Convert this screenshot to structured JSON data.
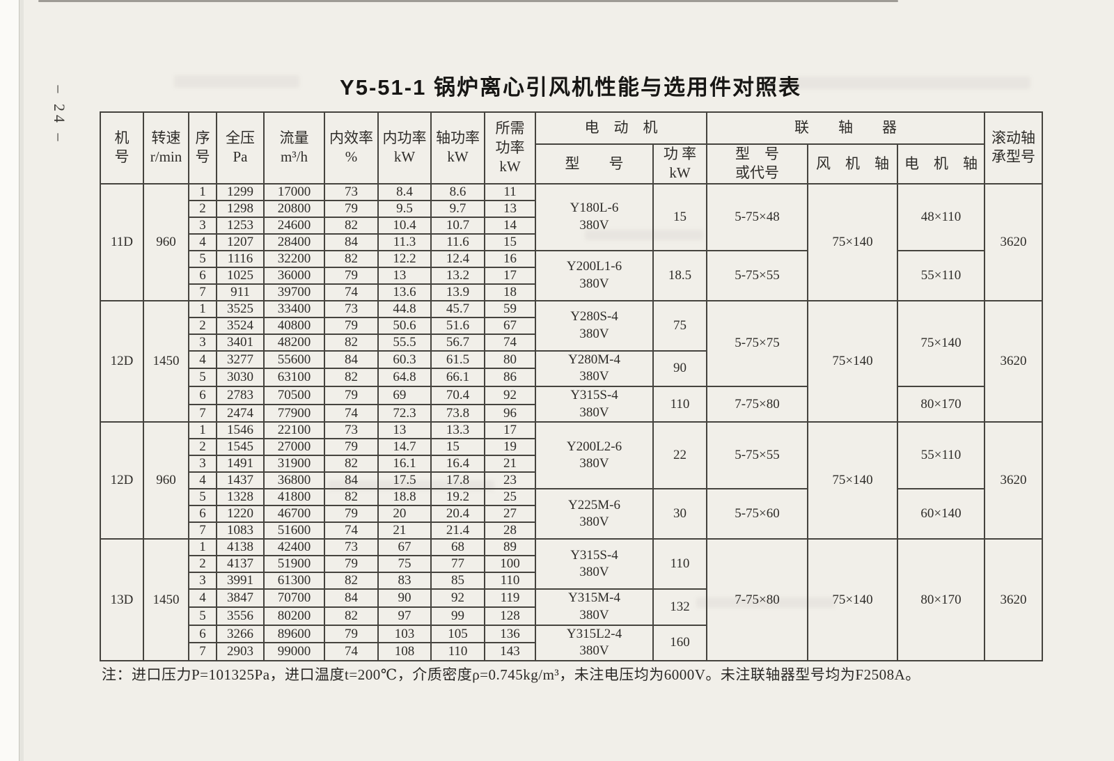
{
  "page": {
    "number_label": "– 24 –"
  },
  "title": "Y5-51-1  锅炉离心引风机性能与选用件对照表",
  "table": {
    "header": {
      "machine_no": "机\n号",
      "speed": "转速\nr/min",
      "seq": "序\n号",
      "pressure": "全压\nPa",
      "flow": "流量\nm³/h",
      "efficiency": "内效率\n%",
      "internal_power": "内功率\nkW",
      "shaft_power": "轴功率\nkW",
      "required_power": "所需\n功率\nkW",
      "motor_group": "电　动　机",
      "motor_model": "型　　号",
      "motor_power": "功 率\nkW",
      "coupling_group": "联　　轴　　器",
      "coupling_model": "型　号\n或代号",
      "fan_shaft": "风　机　轴",
      "motor_shaft": "电　机　轴",
      "bearing": "滚动轴\n承型号"
    },
    "blocks": [
      {
        "machine_no": "11D",
        "speed": "960",
        "rows": [
          [
            "1",
            "1299",
            "17000",
            "73",
            "8.4",
            "8.6",
            "11"
          ],
          [
            "2",
            "1298",
            "20800",
            "79",
            "9.5",
            "9.7",
            "13"
          ],
          [
            "3",
            "1253",
            "24600",
            "82",
            "10.4",
            "10.7",
            "14"
          ],
          [
            "4",
            "1207",
            "28400",
            "84",
            "11.3",
            "11.6",
            "15"
          ],
          [
            "5",
            "1116",
            "32200",
            "82",
            "12.2",
            "12.4",
            "16"
          ],
          [
            "6",
            "1025",
            "36000",
            "79",
            "13",
            "13.2",
            "17"
          ],
          [
            "7",
            "911",
            "39700",
            "74",
            "13.6",
            "13.9",
            "18"
          ]
        ],
        "motors": [
          {
            "model": "Y180L-6\n380V",
            "power": "15",
            "span": 4
          },
          {
            "model": "Y200L1-6\n380V",
            "power": "18.5",
            "span": 3
          }
        ],
        "couplings": [
          {
            "label": "5-75×48",
            "span": 4
          },
          {
            "label": "5-75×55",
            "span": 3
          }
        ],
        "fan_shafts": [
          {
            "label": "75×140",
            "span": 7
          }
        ],
        "motor_shafts": [
          {
            "label": "48×110",
            "span": 4
          },
          {
            "label": "55×110",
            "span": 3
          }
        ],
        "bearings": [
          {
            "label": "3620",
            "span": 7
          }
        ]
      },
      {
        "machine_no": "12D",
        "speed": "1450",
        "rows": [
          [
            "1",
            "3525",
            "33400",
            "73",
            "44.8",
            "45.7",
            "59"
          ],
          [
            "2",
            "3524",
            "40800",
            "79",
            "50.6",
            "51.6",
            "67"
          ],
          [
            "3",
            "3401",
            "48200",
            "82",
            "55.5",
            "56.7",
            "74"
          ],
          [
            "4",
            "3277",
            "55600",
            "84",
            "60.3",
            "61.5",
            "80"
          ],
          [
            "5",
            "3030",
            "63100",
            "82",
            "64.8",
            "66.1",
            "86"
          ],
          [
            "6",
            "2783",
            "70500",
            "79",
            "69",
            "70.4",
            "92"
          ],
          [
            "7",
            "2474",
            "77900",
            "74",
            "72.3",
            "73.8",
            "96"
          ]
        ],
        "motors": [
          {
            "model": "Y280S-4\n380V",
            "power": "75",
            "span": 3
          },
          {
            "model": "Y280M-4\n380V",
            "power": "90",
            "span": 2
          },
          {
            "model": "Y315S-4\n380V",
            "power": "110",
            "span": 2
          }
        ],
        "couplings": [
          {
            "label": "5-75×75",
            "span": 5
          },
          {
            "label": "7-75×80",
            "span": 2
          }
        ],
        "fan_shafts": [
          {
            "label": "75×140",
            "span": 7
          }
        ],
        "motor_shafts": [
          {
            "label": "75×140",
            "span": 5
          },
          {
            "label": "80×170",
            "span": 2
          }
        ],
        "bearings": [
          {
            "label": "3620",
            "span": 7
          }
        ]
      },
      {
        "machine_no": "12D",
        "speed": "960",
        "rows": [
          [
            "1",
            "1546",
            "22100",
            "73",
            "13",
            "13.3",
            "17"
          ],
          [
            "2",
            "1545",
            "27000",
            "79",
            "14.7",
            "15",
            "19"
          ],
          [
            "3",
            "1491",
            "31900",
            "82",
            "16.1",
            "16.4",
            "21"
          ],
          [
            "4",
            "1437",
            "36800",
            "84",
            "17.5",
            "17.8",
            "23"
          ],
          [
            "5",
            "1328",
            "41800",
            "82",
            "18.8",
            "19.2",
            "25"
          ],
          [
            "6",
            "1220",
            "46700",
            "79",
            "20",
            "20.4",
            "27"
          ],
          [
            "7",
            "1083",
            "51600",
            "74",
            "21",
            "21.4",
            "28"
          ]
        ],
        "motors": [
          {
            "model": "Y200L2-6\n380V",
            "power": "22",
            "span": 4
          },
          {
            "model": "Y225M-6\n380V",
            "power": "30",
            "span": 3
          }
        ],
        "couplings": [
          {
            "label": "5-75×55",
            "span": 4
          },
          {
            "label": "5-75×60",
            "span": 3
          }
        ],
        "fan_shafts": [
          {
            "label": "75×140",
            "span": 7
          }
        ],
        "motor_shafts": [
          {
            "label": "55×110",
            "span": 4
          },
          {
            "label": "60×140",
            "span": 3
          }
        ],
        "bearings": [
          {
            "label": "3620",
            "span": 7
          }
        ]
      },
      {
        "machine_no": "13D",
        "speed": "1450",
        "rows": [
          [
            "1",
            "4138",
            "42400",
            "73",
            "67",
            "68",
            "89"
          ],
          [
            "2",
            "4137",
            "51900",
            "79",
            "75",
            "77",
            "100"
          ],
          [
            "3",
            "3991",
            "61300",
            "82",
            "83",
            "85",
            "110"
          ],
          [
            "4",
            "3847",
            "70700",
            "84",
            "90",
            "92",
            "119"
          ],
          [
            "5",
            "3556",
            "80200",
            "82",
            "97",
            "99",
            "128"
          ],
          [
            "6",
            "3266",
            "89600",
            "79",
            "103",
            "105",
            "136"
          ],
          [
            "7",
            "2903",
            "99000",
            "74",
            "108",
            "110",
            "143"
          ]
        ],
        "motors": [
          {
            "model": "Y315S-4\n380V",
            "power": "110",
            "span": 3
          },
          {
            "model": "Y315M-4\n380V",
            "power": "132",
            "span": 2
          },
          {
            "model": "Y315L2-4\n380V",
            "power": "160",
            "span": 2
          }
        ],
        "couplings": [
          {
            "label": "7-75×80",
            "span": 7
          }
        ],
        "fan_shafts": [
          {
            "label": "75×140",
            "span": 7
          }
        ],
        "motor_shafts": [
          {
            "label": "80×170",
            "span": 7
          }
        ],
        "bearings": [
          {
            "label": "3620",
            "span": 7
          }
        ]
      }
    ]
  },
  "footnote": "注：进口压力P=101325Pa，进口温度t=200℃，介质密度ρ=0.745kg/m³，未注电压均为6000V。未注联轴器型号均为F2508A。"
}
